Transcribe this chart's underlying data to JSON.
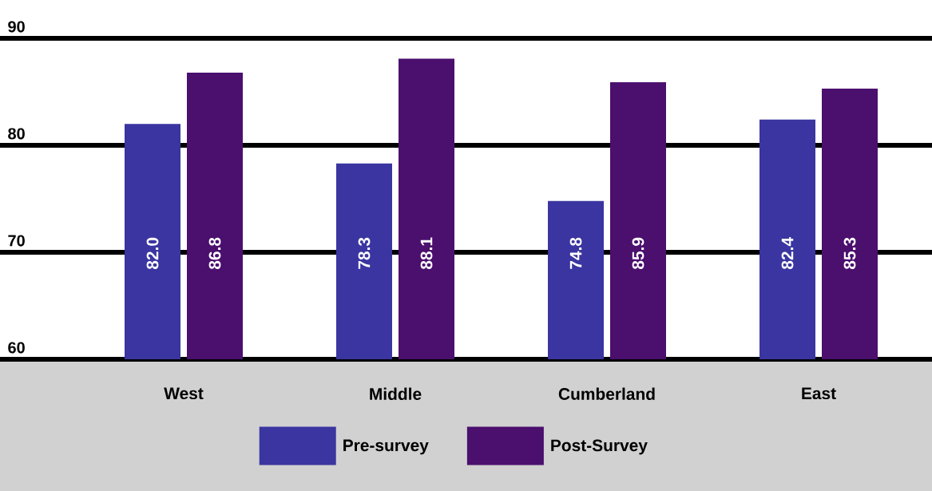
{
  "chart_data": {
    "type": "bar",
    "categories": [
      "West",
      "Middle",
      "Cumberland",
      "East"
    ],
    "series": [
      {
        "name": "Pre-survey",
        "color": "#3a35a0",
        "values": [
          82.0,
          78.3,
          74.8,
          82.4
        ],
        "value_labels": [
          "82.0",
          "78.3",
          "74.8",
          "82.4"
        ]
      },
      {
        "name": "Post-Survey",
        "color": "#4b0f6e",
        "values": [
          86.8,
          88.1,
          85.9,
          85.3
        ],
        "value_labels": [
          "86.8",
          "88.1",
          "85.9",
          "85.3"
        ]
      }
    ],
    "ylim": [
      60,
      90
    ],
    "yticks": [
      60,
      70,
      80,
      90
    ],
    "grid": "y",
    "legend": "bottom"
  }
}
